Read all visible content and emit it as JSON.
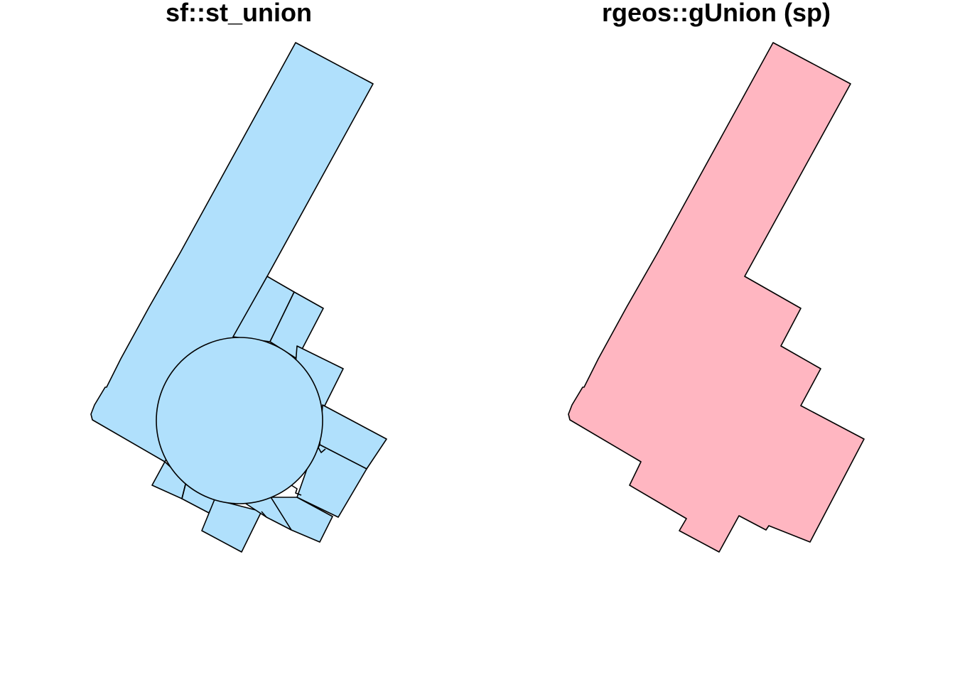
{
  "panels": [
    {
      "title": "sf::st_union",
      "fill": "#B0E0FC"
    },
    {
      "title": "rgeos::gUnion (sp)",
      "fill": "#FFB6C1"
    }
  ],
  "stroke": "#000000"
}
